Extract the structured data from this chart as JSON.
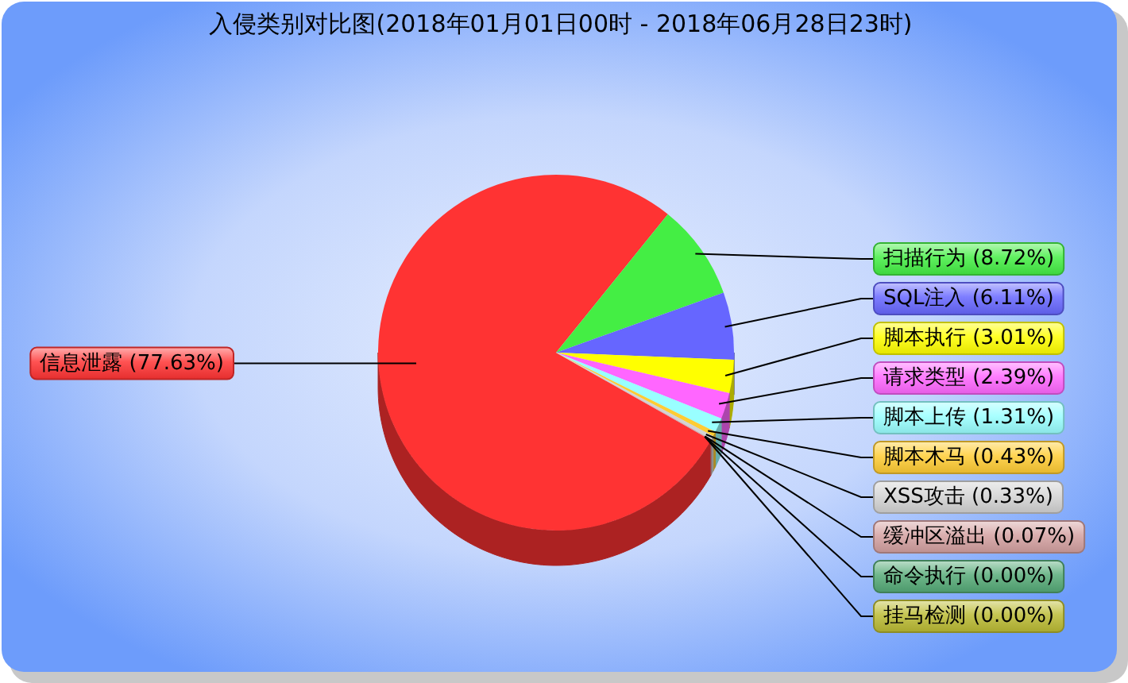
{
  "chart_data": {
    "type": "pie",
    "title": "入侵类别对比图(2018年01月01日00时 - 2018年06月28日23时)",
    "categories": [
      "信息泄露",
      "扫描行为",
      "SQL注入",
      "脚本执行",
      "请求类型",
      "脚本上传",
      "脚本木马",
      "XSS攻击",
      "缓冲区溢出",
      "命令执行",
      "挂马检测"
    ],
    "values": [
      77.63,
      8.72,
      6.11,
      3.01,
      2.39,
      1.31,
      0.43,
      0.33,
      0.07,
      0,
      0
    ],
    "colors": [
      "#ff3333",
      "#44ee44",
      "#6666ff",
      "#ffff00",
      "#ff66ff",
      "#99ffff",
      "#ffcc33",
      "#d3d3d3",
      "#d4a0a0",
      "#55aa77",
      "#bbbb33"
    ],
    "value_labels": [
      "(77.63%)",
      "(8.72%)",
      "(6.11%)",
      "(3.01%)",
      "(2.39%)",
      "(1.31%)",
      "(0.43%)",
      "(0.33%)",
      "(0.07%)",
      "(0.00%)",
      "(0.00%)"
    ]
  }
}
